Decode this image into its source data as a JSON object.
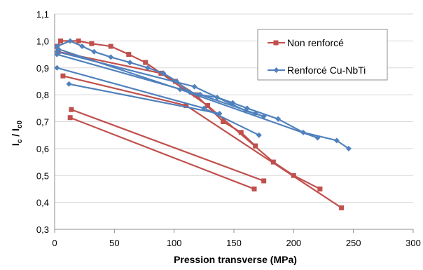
{
  "chart_data": {
    "type": "line",
    "title": "",
    "xlabel": "Pression transverse (MPa)",
    "ylabel": {
      "main": "I",
      "sub1": "c",
      "sep": " / I",
      "sub2": "c0"
    },
    "xlim": [
      0,
      300
    ],
    "ylim": [
      0.3,
      1.1
    ],
    "x_ticks": [
      "0",
      "50",
      "100",
      "150",
      "200",
      "250",
      "300"
    ],
    "y_ticks": [
      "0,3",
      "0,4",
      "0,5",
      "0,6",
      "0,7",
      "0,8",
      "0,9",
      "1,0",
      "1,1"
    ],
    "grid": "horizontal",
    "legend_position": "top-right",
    "series": [
      {
        "name": "Non renforcé",
        "color": "#C0504D",
        "marker": "square",
        "x": [
          2,
          5,
          20,
          31,
          47,
          62,
          76,
          89,
          101,
          118,
          141,
          156,
          168,
          3,
          89,
          128,
          183,
          200,
          222,
          7,
          110,
          240,
          14,
          175,
          13,
          167
        ],
        "y": [
          0.98,
          1.0,
          1.0,
          0.99,
          0.98,
          0.95,
          0.92,
          0.88,
          0.85,
          0.8,
          0.7,
          0.66,
          0.61,
          0.96,
          0.88,
          0.76,
          0.55,
          0.5,
          0.45,
          0.87,
          0.76,
          0.38,
          0.745,
          0.48,
          0.715,
          0.45
        ]
      },
      {
        "name": "Renforcé Cu-NbTi",
        "color": "#4F81BD",
        "marker": "diamond",
        "x": [
          2,
          13,
          23,
          33,
          47,
          63,
          78,
          91,
          102,
          113,
          121,
          136,
          149,
          161,
          187,
          208,
          236,
          246,
          2,
          117,
          160,
          175,
          2,
          122,
          168,
          2,
          125,
          171,
          3,
          105,
          220,
          12,
          138
        ],
        "y": [
          0.98,
          1.0,
          0.98,
          0.96,
          0.94,
          0.92,
          0.9,
          0.88,
          0.85,
          0.81,
          0.8,
          0.79,
          0.77,
          0.75,
          0.71,
          0.66,
          0.63,
          0.6,
          0.96,
          0.83,
          0.74,
          0.72,
          0.95,
          0.8,
          0.73,
          0.9,
          0.75,
          0.65,
          0.97,
          0.82,
          0.64,
          0.84,
          0.73
        ]
      }
    ],
    "segments": [
      [
        2,
        5,
        20,
        31,
        47,
        62,
        76,
        89,
        101,
        118,
        141,
        156,
        168
      ],
      [
        3,
        89,
        128,
        183,
        200,
        222
      ],
      [
        7,
        110,
        240
      ],
      [
        14,
        175
      ],
      [
        13,
        167
      ]
    ],
    "segments_y": [
      [
        0.98,
        1.0,
        1.0,
        0.99,
        0.98,
        0.95,
        0.92,
        0.88,
        0.85,
        0.8,
        0.7,
        0.66,
        0.61
      ],
      [
        0.96,
        0.88,
        0.76,
        0.55,
        0.5,
        0.45
      ],
      [
        0.87,
        0.76,
        0.38
      ],
      [
        0.745,
        0.48
      ],
      [
        0.715,
        0.45
      ]
    ],
    "blue_segments": [
      [
        2,
        13,
        23,
        33,
        47,
        63,
        78,
        91,
        102,
        113,
        121,
        136,
        149,
        161,
        187,
        208,
        236,
        246
      ],
      [
        2,
        117,
        160,
        175
      ],
      [
        2,
        122,
        168
      ],
      [
        2,
        125,
        171
      ],
      [
        3,
        105,
        220
      ],
      [
        12,
        138
      ]
    ],
    "blue_segments_y": [
      [
        0.98,
        1.0,
        0.98,
        0.96,
        0.94,
        0.92,
        0.9,
        0.88,
        0.85,
        0.81,
        0.8,
        0.79,
        0.77,
        0.75,
        0.71,
        0.66,
        0.63,
        0.6
      ],
      [
        0.96,
        0.83,
        0.74,
        0.72
      ],
      [
        0.95,
        0.8,
        0.73
      ],
      [
        0.9,
        0.75,
        0.65
      ],
      [
        0.97,
        0.82,
        0.64
      ],
      [
        0.84,
        0.73
      ]
    ]
  }
}
